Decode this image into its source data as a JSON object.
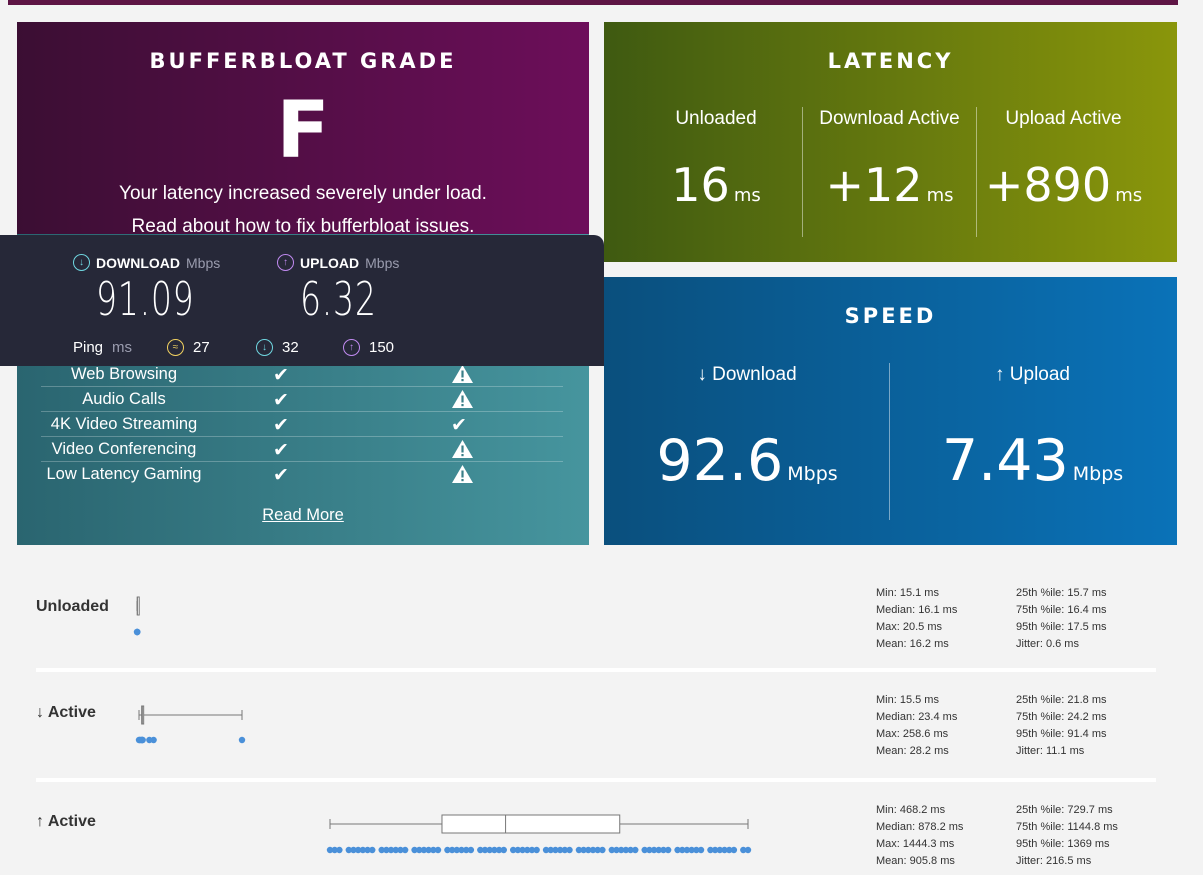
{
  "grade": {
    "title": "BUFFERBLOAT GRADE",
    "letter": "F",
    "message": "Your latency increased severely under load.",
    "fix_link": "Read about how to fix bufferbloat issues.",
    "impact_rows": [
      {
        "name": "Web Browsing",
        "c1": "check",
        "c2": "warn"
      },
      {
        "name": "Audio Calls",
        "c1": "check",
        "c2": "warn"
      },
      {
        "name": "4K Video Streaming",
        "c1": "check",
        "c2": "check"
      },
      {
        "name": "Video Conferencing",
        "c1": "check",
        "c2": "warn"
      },
      {
        "name": "Low Latency Gaming",
        "c1": "check",
        "c2": "warn"
      }
    ],
    "read_more": "Read More"
  },
  "overlay": {
    "download_label": "DOWNLOAD",
    "download_unit": "Mbps",
    "download_value": "91.09",
    "upload_label": "UPLOAD",
    "upload_unit": "Mbps",
    "upload_value": "6.32",
    "ping_label": "Ping",
    "ping_unit": "ms",
    "ping_idle": "27",
    "ping_download": "32",
    "ping_upload": "150"
  },
  "latency": {
    "title": "LATENCY",
    "columns": [
      {
        "head": "Unloaded",
        "value": "16",
        "unit": "ms"
      },
      {
        "head": "Download Active",
        "value": "+12",
        "unit": "ms"
      },
      {
        "head": "Upload Active",
        "value": "+890",
        "unit": "ms"
      }
    ]
  },
  "speed": {
    "title": "SPEED",
    "download_head": "↓ Download",
    "download_value": "92.6",
    "upload_head": "↑ Upload",
    "upload_value": "7.43",
    "unit": "Mbps"
  },
  "stats": [
    {
      "label": "Unloaded",
      "left": [
        "Min: 15.1 ms",
        "Median: 16.1 ms",
        "Max: 20.5 ms",
        "Mean: 16.2 ms"
      ],
      "right": [
        "25th %ile: 15.7 ms",
        "75th %ile: 16.4 ms",
        "95th %ile: 17.5 ms",
        "Jitter: 0.6 ms"
      ],
      "box": {
        "min": 15.1,
        "q1": 15.7,
        "median": 16.1,
        "q3": 16.4,
        "max": 20.5
      }
    },
    {
      "label": "↓ Active",
      "left": [
        "Min: 15.5 ms",
        "Median: 23.4 ms",
        "Max: 258.6 ms",
        "Mean: 28.2 ms"
      ],
      "right": [
        "25th %ile: 21.8 ms",
        "75th %ile: 24.2 ms",
        "95th %ile: 91.4 ms",
        "Jitter: 11.1 ms"
      ],
      "box": {
        "min": 15.5,
        "q1": 21.8,
        "median": 23.4,
        "q3": 24.2,
        "max": 258.6
      }
    },
    {
      "label": "↑ Active",
      "left": [
        "Min: 468.2 ms",
        "Median: 878.2 ms",
        "Max: 1444.3 ms",
        "Mean: 905.8 ms"
      ],
      "right": [
        "25th %ile: 729.7 ms",
        "75th %ile: 1144.8 ms",
        "95th %ile: 1369 ms",
        "Jitter: 216.5 ms"
      ],
      "box": {
        "min": 468.2,
        "q1": 729.7,
        "median": 878.2,
        "q3": 1144.8,
        "max": 1444.3
      }
    }
  ],
  "colors": {
    "grade_bg": "#6d0e5a",
    "impact_bg": "#46959e",
    "latency_bg": "#8a960b",
    "speed_bg": "#0a72b8",
    "dot": "#4a90d9"
  }
}
